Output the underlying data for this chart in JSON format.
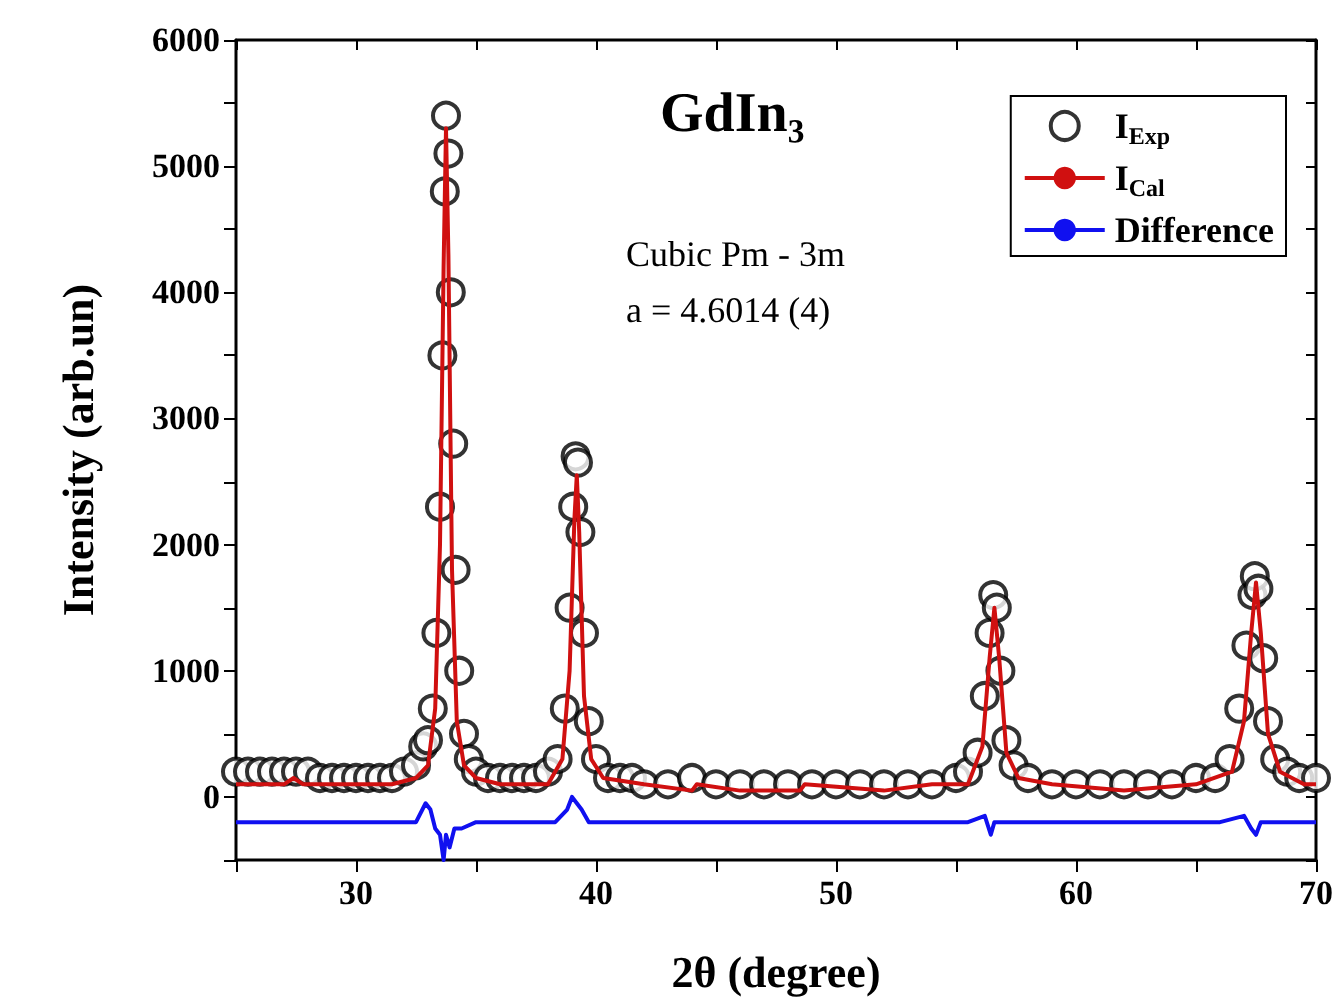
{
  "chart_data": {
    "type": "line",
    "title": "GdIn₃",
    "xlabel": "2θ (degree)",
    "ylabel": "Intensity (arb.un)",
    "annotations": [
      "Cubic Pm - 3m",
      "a = 4.6014 (4)"
    ],
    "xlim": [
      25,
      70
    ],
    "xticks": [
      {
        "value": 25,
        "label": null
      },
      30,
      {
        "value": 35,
        "label": null
      },
      40,
      {
        "value": 45,
        "label": null
      },
      50,
      {
        "value": 55,
        "label": null
      },
      60,
      {
        "value": 65,
        "label": null
      },
      70
    ],
    "ylim": [
      -500,
      6000
    ],
    "yticks": [
      {
        "value": -500,
        "label": null
      },
      0,
      {
        "value": 500,
        "label": null
      },
      1000,
      {
        "value": 1500,
        "label": null
      },
      2000,
      {
        "value": 2500,
        "label": null
      },
      3000,
      {
        "value": 3500,
        "label": null
      },
      4000,
      {
        "value": 4500,
        "label": null
      },
      5000,
      {
        "value": 5500,
        "label": null
      },
      6000
    ],
    "grid": false,
    "legend": "top right",
    "series": [
      {
        "name": "I$_{Exp}$",
        "type": "scatter",
        "marker": "circle",
        "color": "#000000",
        "x": [
          25,
          25.5,
          26,
          26.5,
          27,
          27.5,
          28,
          28.5,
          29,
          29.5,
          30,
          30.5,
          31,
          31.5,
          32,
          32.5,
          32.8,
          33.0,
          33.2,
          33.35,
          33.5,
          33.6,
          33.7,
          33.75,
          33.85,
          33.95,
          34.05,
          34.15,
          34.3,
          34.5,
          34.7,
          35,
          35.5,
          36,
          36.5,
          37,
          37.5,
          38,
          38.4,
          38.7,
          38.9,
          39.05,
          39.15,
          39.25,
          39.35,
          39.5,
          39.7,
          40,
          40.5,
          41,
          41.5,
          42,
          43,
          44,
          45,
          46,
          47,
          48,
          49,
          50,
          51,
          52,
          53,
          54,
          55,
          55.5,
          55.9,
          56.2,
          56.4,
          56.55,
          56.7,
          56.85,
          57.1,
          57.4,
          58,
          59,
          60,
          61,
          62,
          63,
          64,
          65,
          65.8,
          66.4,
          66.8,
          67.1,
          67.35,
          67.45,
          67.6,
          67.8,
          68.0,
          68.3,
          68.8,
          69.3,
          70
        ],
        "values": [
          200,
          200,
          200,
          200,
          200,
          200,
          200,
          150,
          150,
          150,
          150,
          150,
          150,
          150,
          200,
          250,
          400,
          450,
          700,
          1300,
          2300,
          3500,
          4800,
          5400,
          5100,
          4000,
          2800,
          1800,
          1000,
          500,
          300,
          200,
          150,
          150,
          150,
          150,
          150,
          200,
          300,
          700,
          1500,
          2300,
          2700,
          2650,
          2100,
          1300,
          600,
          300,
          150,
          150,
          150,
          100,
          100,
          150,
          100,
          100,
          100,
          100,
          100,
          100,
          100,
          100,
          100,
          100,
          150,
          200,
          350,
          800,
          1300,
          1600,
          1500,
          1000,
          450,
          250,
          150,
          100,
          100,
          100,
          100,
          100,
          100,
          150,
          150,
          300,
          700,
          1200,
          1600,
          1750,
          1650,
          1100,
          600,
          300,
          200,
          150,
          150
        ]
      },
      {
        "name": "I$_{Cal}$",
        "color": "#d01010",
        "line_style": "solid",
        "x": [
          25,
          27,
          27.4,
          27.8,
          30,
          31.5,
          32.5,
          33.0,
          33.3,
          33.5,
          33.65,
          33.75,
          33.85,
          34.0,
          34.2,
          34.5,
          35,
          36,
          37,
          38,
          38.6,
          38.9,
          39.1,
          39.2,
          39.3,
          39.5,
          39.8,
          40.3,
          42,
          44,
          44.2,
          46,
          48.5,
          48.7,
          52,
          54,
          55.5,
          56.1,
          56.4,
          56.6,
          56.8,
          57.1,
          57.6,
          59,
          62,
          65,
          66.5,
          67.0,
          67.3,
          67.5,
          67.7,
          68.0,
          68.5,
          69.5,
          70
        ],
        "values": [
          100,
          100,
          150,
          100,
          100,
          100,
          150,
          250,
          700,
          2000,
          4200,
          5300,
          4300,
          1800,
          600,
          250,
          150,
          100,
          100,
          100,
          300,
          1000,
          2200,
          2550,
          2100,
          800,
          300,
          150,
          100,
          50,
          100,
          50,
          50,
          100,
          50,
          100,
          100,
          400,
          1100,
          1500,
          1100,
          350,
          150,
          100,
          50,
          100,
          200,
          600,
          1300,
          1700,
          1300,
          500,
          200,
          100,
          100
        ]
      },
      {
        "name": "Difference",
        "color": "#1010f0",
        "line_style": "solid",
        "x": [
          25,
          27,
          29,
          31,
          32.5,
          32.9,
          33.1,
          33.3,
          33.5,
          33.65,
          33.75,
          33.9,
          34.1,
          34.4,
          35,
          36.4,
          37,
          38.3,
          38.8,
          39.0,
          39.2,
          39.4,
          39.7,
          40.2,
          42,
          45,
          48,
          51,
          54,
          55.5,
          56.2,
          56.45,
          56.6,
          56.8,
          57.3,
          60,
          63,
          66,
          67.0,
          67.3,
          67.5,
          67.7,
          68.2,
          70
        ],
        "values": [
          -200,
          -200,
          -200,
          -200,
          -200,
          -50,
          -100,
          -250,
          -300,
          -500,
          -300,
          -400,
          -250,
          -250,
          -200,
          -200,
          -200,
          -200,
          -100,
          0,
          -50,
          -100,
          -200,
          -200,
          -200,
          -200,
          -200,
          -200,
          -200,
          -200,
          -150,
          -300,
          -200,
          -200,
          -200,
          -200,
          -200,
          -200,
          -150,
          -250,
          -300,
          -200,
          -200,
          -200
        ]
      }
    ]
  }
}
